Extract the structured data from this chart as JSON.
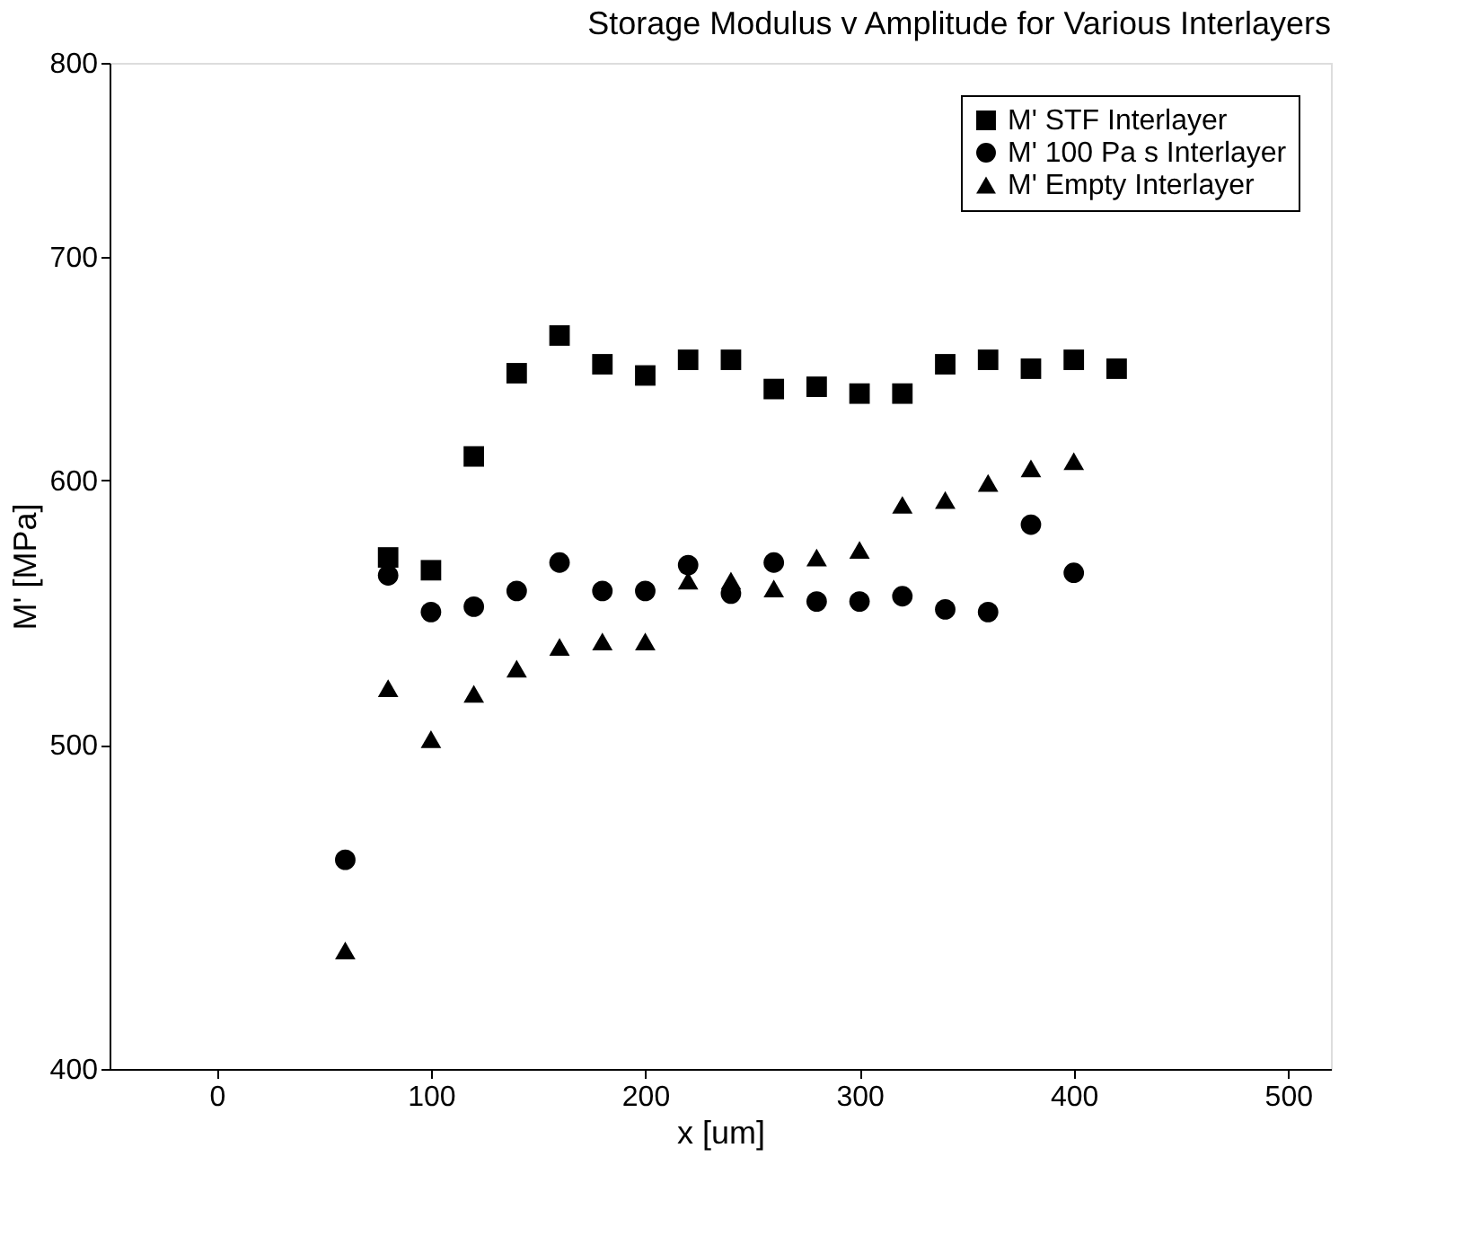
{
  "chart_data": {
    "type": "scatter",
    "title": "Storage Modulus v Amplitude for Various Interlayers",
    "xlabel": "x [um]",
    "ylabel": "M' [MPa]",
    "log": "y",
    "xlim": [
      -50,
      520
    ],
    "xticks": [
      0,
      100,
      200,
      300,
      400,
      500
    ],
    "ylim": [
      400,
      800
    ],
    "yticks": [
      400,
      500,
      600,
      700,
      800
    ],
    "grid": false,
    "legend": "top right",
    "series": [
      {
        "name": "M' STF Interlayer",
        "color": "#000000",
        "marker": "square",
        "x": [
          80,
          100,
          120,
          140,
          160,
          180,
          200,
          220,
          240,
          260,
          280,
          300,
          320,
          340,
          360,
          380,
          400,
          420
        ],
        "values": [
          569,
          564,
          610,
          646,
          663,
          650,
          645,
          652,
          652,
          639,
          640,
          637,
          637,
          650,
          652,
          648,
          652,
          648
        ]
      },
      {
        "name": "M' 100 Pa s Interlayer",
        "color": "#000000",
        "marker": "circle",
        "x": [
          60,
          80,
          100,
          120,
          140,
          160,
          180,
          200,
          220,
          240,
          260,
          280,
          300,
          320,
          340,
          360,
          380,
          400
        ],
        "values": [
          462,
          562,
          548,
          550,
          556,
          567,
          556,
          556,
          566,
          555,
          567,
          552,
          552,
          554,
          549,
          548,
          582,
          563
        ]
      },
      {
        "name": "M' Empty Interlayer",
        "color": "#000000",
        "marker": "triangle",
        "x": [
          60,
          80,
          100,
          120,
          140,
          160,
          180,
          200,
          220,
          240,
          260,
          280,
          300,
          320,
          340,
          360,
          380,
          400
        ],
        "values": [
          434,
          520,
          502,
          518,
          527,
          535,
          537,
          537,
          560,
          560,
          557,
          569,
          572,
          590,
          592,
          599,
          605,
          608
        ]
      }
    ]
  }
}
